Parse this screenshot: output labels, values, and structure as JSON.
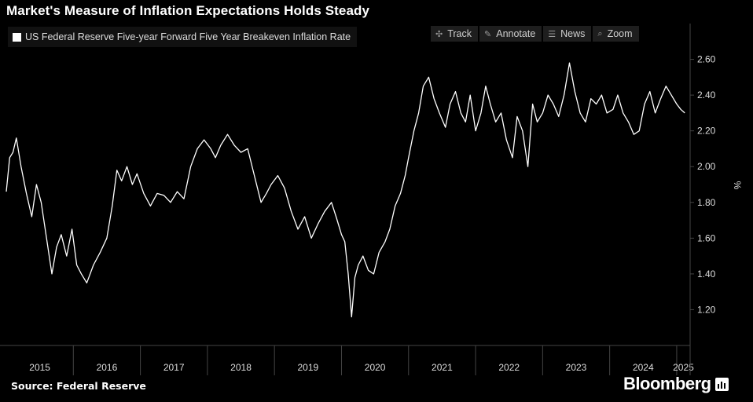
{
  "title": "Market's Measure of Inflation Expectations Holds Steady",
  "legend": {
    "label": "US Federal Reserve Five-year Forward Five Year Breakeven Inflation Rate",
    "color": "#ffffff"
  },
  "toolbar": [
    {
      "label": "Track",
      "icon": "crosshair-icon",
      "glyph": "✣"
    },
    {
      "label": "Annotate",
      "icon": "pencil-icon",
      "glyph": "✎"
    },
    {
      "label": "News",
      "icon": "news-icon",
      "glyph": "☰"
    },
    {
      "label": "Zoom",
      "icon": "search-icon",
      "glyph": "⌕"
    }
  ],
  "source": "Source: Federal Reserve",
  "brand": "Bloomberg",
  "colors": {
    "background": "#000000",
    "line": "#ffffff",
    "grid": "#444444"
  },
  "chart_data": {
    "type": "line",
    "title": "Market's Measure of Inflation Expectations Holds Steady",
    "ylabel": "%",
    "ylim": [
      1.0,
      2.8
    ],
    "xlim": [
      2015.0,
      2025.2
    ],
    "yticks": [
      1.2,
      1.4,
      1.6,
      1.8,
      2.0,
      2.2,
      2.4,
      2.6
    ],
    "ytick_labels": [
      "1.20",
      "1.40",
      "1.60",
      "1.80",
      "2.00",
      "2.20",
      "2.40",
      "2.60"
    ],
    "xtick_labels": [
      "2015",
      "2016",
      "2017",
      "2018",
      "2019",
      "2020",
      "2021",
      "2022",
      "2023",
      "2024",
      "2025"
    ],
    "grid": false,
    "series": [
      {
        "name": "US Federal Reserve Five-year Forward Five Year Breakeven Inflation Rate",
        "x": [
          2015.0,
          2015.05,
          2015.1,
          2015.15,
          2015.22,
          2015.3,
          2015.38,
          2015.45,
          2015.52,
          2015.6,
          2015.68,
          2015.75,
          2015.82,
          2015.9,
          2015.98,
          2016.05,
          2016.12,
          2016.2,
          2016.3,
          2016.4,
          2016.5,
          2016.58,
          2016.65,
          2016.72,
          2016.8,
          2016.88,
          2016.95,
          2017.05,
          2017.15,
          2017.25,
          2017.35,
          2017.45,
          2017.55,
          2017.65,
          2017.75,
          2017.85,
          2017.95,
          2018.05,
          2018.12,
          2018.2,
          2018.3,
          2018.4,
          2018.5,
          2018.6,
          2018.7,
          2018.8,
          2018.88,
          2018.95,
          2019.05,
          2019.15,
          2019.25,
          2019.35,
          2019.45,
          2019.55,
          2019.65,
          2019.75,
          2019.85,
          2019.92,
          2020.0,
          2020.05,
          2020.1,
          2020.15,
          2020.2,
          2020.25,
          2020.32,
          2020.4,
          2020.48,
          2020.56,
          2020.65,
          2020.72,
          2020.8,
          2020.88,
          2020.95,
          2021.0,
          2021.08,
          2021.15,
          2021.22,
          2021.3,
          2021.38,
          2021.46,
          2021.55,
          2021.62,
          2021.7,
          2021.78,
          2021.85,
          2021.92,
          2022.0,
          2022.08,
          2022.15,
          2022.22,
          2022.3,
          2022.38,
          2022.46,
          2022.55,
          2022.62,
          2022.7,
          2022.78,
          2022.85,
          2022.92,
          2023.0,
          2023.08,
          2023.16,
          2023.24,
          2023.32,
          2023.4,
          2023.48,
          2023.56,
          2023.64,
          2023.72,
          2023.8,
          2023.88,
          2023.96,
          2024.05,
          2024.12,
          2024.2,
          2024.28,
          2024.36,
          2024.44,
          2024.52,
          2024.6,
          2024.68,
          2024.76,
          2024.84,
          2024.92,
          2025.0,
          2025.06,
          2025.12
        ],
        "y": [
          1.86,
          2.05,
          2.08,
          2.16,
          2.0,
          1.85,
          1.72,
          1.9,
          1.8,
          1.6,
          1.4,
          1.55,
          1.62,
          1.5,
          1.65,
          1.45,
          1.4,
          1.35,
          1.45,
          1.52,
          1.6,
          1.78,
          1.98,
          1.92,
          2.0,
          1.9,
          1.96,
          1.85,
          1.78,
          1.85,
          1.84,
          1.8,
          1.86,
          1.82,
          2.0,
          2.1,
          2.15,
          2.1,
          2.05,
          2.12,
          2.18,
          2.12,
          2.08,
          2.1,
          1.95,
          1.8,
          1.85,
          1.9,
          1.95,
          1.88,
          1.75,
          1.65,
          1.72,
          1.6,
          1.68,
          1.75,
          1.8,
          1.72,
          1.62,
          1.58,
          1.4,
          1.16,
          1.38,
          1.45,
          1.5,
          1.42,
          1.4,
          1.52,
          1.58,
          1.65,
          1.78,
          1.85,
          1.95,
          2.05,
          2.2,
          2.3,
          2.45,
          2.5,
          2.38,
          2.3,
          2.22,
          2.35,
          2.42,
          2.3,
          2.25,
          2.4,
          2.2,
          2.3,
          2.45,
          2.35,
          2.25,
          2.3,
          2.15,
          2.05,
          2.28,
          2.2,
          2.0,
          2.35,
          2.25,
          2.3,
          2.4,
          2.35,
          2.28,
          2.4,
          2.58,
          2.42,
          2.3,
          2.25,
          2.38,
          2.35,
          2.4,
          2.3,
          2.32,
          2.4,
          2.3,
          2.25,
          2.18,
          2.2,
          2.35,
          2.42,
          2.3,
          2.38,
          2.45,
          2.4,
          2.35,
          2.32,
          2.3
        ]
      }
    ]
  }
}
